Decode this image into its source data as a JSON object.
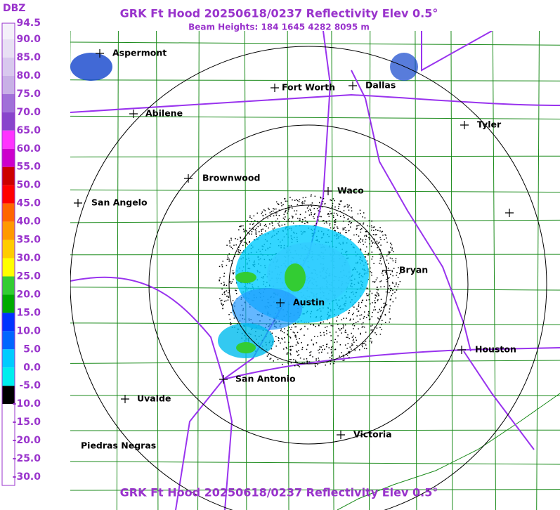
{
  "header": {
    "title": "GRK Ft Hood 20250618/0237 Reflectivity Elev 0.5°",
    "subtitle": "Beam Heights: 184 1645 4282 8095 m"
  },
  "legend": {
    "unit": "DBZ",
    "labels": [
      "94.5",
      "90.0",
      "85.0",
      "80.0",
      "75.0",
      "70.0",
      "65.0",
      "60.0",
      "55.0",
      "50.0",
      "45.0",
      "40.0",
      "35.0",
      "30.0",
      "25.0",
      "20.0",
      "15.0",
      "10.0",
      "5.0",
      "0.0",
      "-5.0",
      "-10.0",
      "-15.0",
      "-20.0",
      "-25.0",
      "-30.0"
    ]
  },
  "cities": [
    {
      "label": "Aspermont"
    },
    {
      "label": "Fort Worth"
    },
    {
      "label": "Dallas"
    },
    {
      "label": "Abilene"
    },
    {
      "label": "Tyler"
    },
    {
      "label": "Brownwood"
    },
    {
      "label": "Waco"
    },
    {
      "label": "San Angelo"
    },
    {
      "label": "Bryan"
    },
    {
      "label": "Austin"
    },
    {
      "label": "Houston"
    },
    {
      "label": "San Antonio"
    },
    {
      "label": "Uvalde"
    },
    {
      "label": "Victoria"
    },
    {
      "label": "Piedras Negras"
    }
  ],
  "footer": {
    "title": "GRK Ft Hood 20250618/0237 Reflectivity Elev 0.5°"
  }
}
